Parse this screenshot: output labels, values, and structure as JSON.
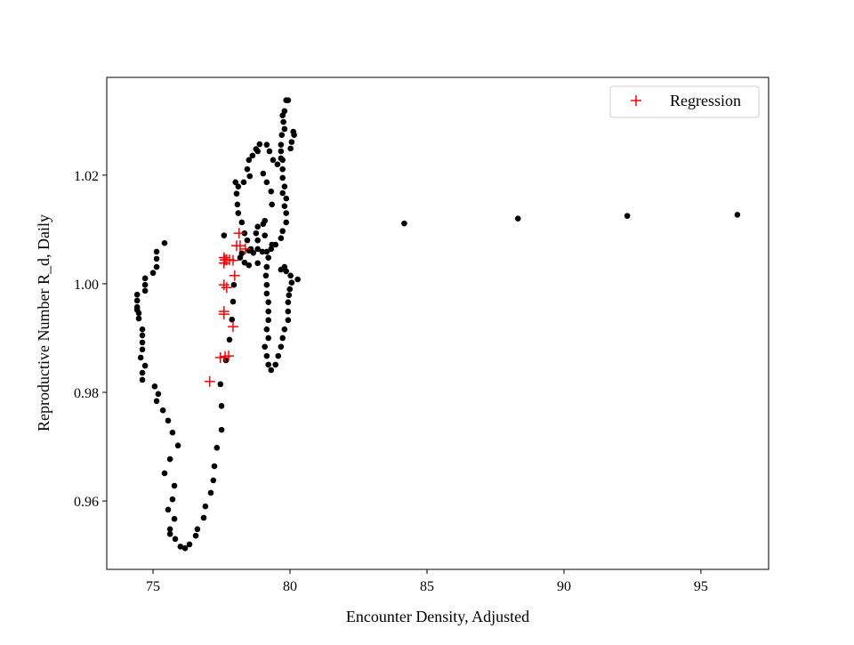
{
  "chart_data": {
    "type": "scatter",
    "title": "",
    "xlabel": "Encounter Density, Adjusted",
    "ylabel": "Reproductive Number R_d, Daily",
    "xlim": [
      73.31,
      97.47
    ],
    "ylim": [
      0.9474,
      1.038
    ],
    "xticks": [
      75,
      80,
      85,
      90,
      95
    ],
    "xtick_labels": [
      "75",
      "80",
      "85",
      "90",
      "95"
    ],
    "yticks": [
      0.96,
      0.98,
      1.0,
      1.02
    ],
    "ytick_labels": [
      "0.96",
      "0.98",
      "1.00",
      "1.02"
    ],
    "grid": false,
    "legend": {
      "placement": "top-right",
      "entries": [
        "Regression"
      ]
    },
    "series": [
      {
        "name": "",
        "marker": "circle",
        "color": "#000000",
        "points": [
          [
            75.42,
            1.0075
          ],
          [
            75.13,
            1.0059
          ],
          [
            75.13,
            1.0046
          ],
          [
            75.13,
            1.0031
          ],
          [
            75.0,
            1.002
          ],
          [
            74.71,
            1.001
          ],
          [
            74.71,
            0.9998
          ],
          [
            74.71,
            0.9987
          ],
          [
            74.42,
            0.998
          ],
          [
            74.42,
            0.9969
          ],
          [
            74.42,
            0.9957
          ],
          [
            74.42,
            0.9952
          ],
          [
            74.48,
            0.9946
          ],
          [
            74.48,
            0.9936
          ],
          [
            74.61,
            0.9916
          ],
          [
            74.61,
            0.9905
          ],
          [
            74.61,
            0.9892
          ],
          [
            74.61,
            0.9879
          ],
          [
            74.55,
            0.9864
          ],
          [
            74.71,
            0.9849
          ],
          [
            74.61,
            0.9836
          ],
          [
            74.61,
            0.9823
          ],
          [
            75.06,
            0.9811
          ],
          [
            75.19,
            0.9797
          ],
          [
            75.13,
            0.9784
          ],
          [
            75.36,
            0.9767
          ],
          [
            75.55,
            0.9748
          ],
          [
            75.71,
            0.9726
          ],
          [
            75.91,
            0.9702
          ],
          [
            75.62,
            0.9677
          ],
          [
            75.42,
            0.9651
          ],
          [
            75.78,
            0.9628
          ],
          [
            75.71,
            0.9603
          ],
          [
            75.55,
            0.9584
          ],
          [
            75.78,
            0.9567
          ],
          [
            75.62,
            0.9548
          ],
          [
            75.62,
            0.9539
          ],
          [
            75.81,
            0.953
          ],
          [
            76.0,
            0.9516
          ],
          [
            76.17,
            0.9513
          ],
          [
            76.33,
            0.952
          ],
          [
            76.56,
            0.9536
          ],
          [
            76.62,
            0.9548
          ],
          [
            76.85,
            0.9569
          ],
          [
            76.91,
            0.959
          ],
          [
            77.11,
            0.9615
          ],
          [
            77.2,
            0.9638
          ],
          [
            77.24,
            0.9664
          ],
          [
            77.33,
            0.9698
          ],
          [
            77.5,
            0.9731
          ],
          [
            77.5,
            0.9775
          ],
          [
            77.46,
            0.9815
          ],
          [
            77.66,
            0.9859
          ],
          [
            77.79,
            0.9897
          ],
          [
            77.88,
            0.9934
          ],
          [
            77.92,
            0.9967
          ],
          [
            77.95,
            0.9998
          ],
          [
            77.59,
            1.0089
          ],
          [
            79.86,
            1.0338
          ],
          [
            79.93,
            1.0338
          ],
          [
            79.8,
            1.0318
          ],
          [
            79.73,
            1.031
          ],
          [
            79.76,
            1.0298
          ],
          [
            79.8,
            1.0285
          ],
          [
            79.7,
            1.0274
          ],
          [
            80.12,
            1.028
          ],
          [
            80.15,
            1.0274
          ],
          [
            80.06,
            1.0261
          ],
          [
            80.02,
            1.0249
          ],
          [
            79.67,
            1.0256
          ],
          [
            79.67,
            1.0244
          ],
          [
            79.67,
            1.0231
          ],
          [
            79.54,
            1.022
          ],
          [
            79.73,
            1.0228
          ],
          [
            79.73,
            1.0211
          ],
          [
            79.73,
            1.0195
          ],
          [
            79.8,
            1.0179
          ],
          [
            79.73,
            1.0167
          ],
          [
            79.86,
            1.0157
          ],
          [
            79.8,
            1.0143
          ],
          [
            79.86,
            1.013
          ],
          [
            79.86,
            1.0113
          ],
          [
            79.73,
            1.0097
          ],
          [
            79.67,
            1.0084
          ],
          [
            79.47,
            1.0072
          ],
          [
            79.31,
            1.0064
          ],
          [
            79.15,
            1.0059
          ],
          [
            78.99,
            1.0059
          ],
          [
            78.82,
            1.0064
          ],
          [
            78.66,
            1.0057
          ],
          [
            78.5,
            1.0061
          ],
          [
            78.24,
            1.0056
          ],
          [
            78.18,
            1.0048
          ],
          [
            78.34,
            1.0039
          ],
          [
            78.5,
            1.0034
          ],
          [
            78.82,
            1.0038
          ],
          [
            79.15,
            1.0031
          ],
          [
            79.8,
            1.0031
          ],
          [
            79.67,
            1.0026
          ],
          [
            79.86,
            1.0023
          ],
          [
            80.02,
            1.0015
          ],
          [
            80.28,
            1.0008
          ],
          [
            80.06,
            1.0002
          ],
          [
            79.99,
            0.999
          ],
          [
            79.96,
            0.9979
          ],
          [
            79.93,
            0.9966
          ],
          [
            79.93,
            0.9949
          ],
          [
            79.93,
            0.9933
          ],
          [
            79.8,
            0.9916
          ],
          [
            79.73,
            0.99
          ],
          [
            79.67,
            0.9884
          ],
          [
            79.57,
            0.9867
          ],
          [
            79.47,
            0.9851
          ],
          [
            79.31,
            0.9841
          ],
          [
            79.21,
            0.9851
          ],
          [
            79.15,
            0.9867
          ],
          [
            79.08,
            0.9884
          ],
          [
            79.21,
            0.99
          ],
          [
            79.15,
            0.9916
          ],
          [
            79.21,
            0.9933
          ],
          [
            79.21,
            0.9949
          ],
          [
            79.21,
            0.9966
          ],
          [
            79.15,
            0.9982
          ],
          [
            79.15,
            0.9998
          ],
          [
            79.12,
            1.0015
          ],
          [
            79.15,
            1.0031
          ],
          [
            79.21,
            1.0048
          ],
          [
            78.89,
            1.0257
          ],
          [
            78.82,
            1.0244
          ],
          [
            78.76,
            1.0248
          ],
          [
            78.63,
            1.0236
          ],
          [
            78.5,
            1.0228
          ],
          [
            78.44,
            1.0211
          ],
          [
            78.53,
            1.0198
          ],
          [
            78.31,
            1.0187
          ],
          [
            78.01,
            1.0187
          ],
          [
            78.11,
            1.0179
          ],
          [
            78.05,
            1.0166
          ],
          [
            78.08,
            1.0146
          ],
          [
            78.11,
            1.013
          ],
          [
            78.24,
            1.0113
          ],
          [
            78.34,
            1.0093
          ],
          [
            78.44,
            1.008
          ],
          [
            78.57,
            1.0064
          ],
          [
            79.15,
            1.0256
          ],
          [
            79.25,
            1.0244
          ],
          [
            79.38,
            1.0228
          ],
          [
            79.02,
            1.0203
          ],
          [
            79.15,
            1.0187
          ],
          [
            79.31,
            1.017
          ],
          [
            79.34,
            1.0146
          ],
          [
            79.08,
            1.0116
          ],
          [
            79.02,
            1.011
          ],
          [
            78.82,
            1.0105
          ],
          [
            78.76,
            1.0093
          ],
          [
            78.82,
            1.008
          ],
          [
            79.08,
            1.0089
          ],
          [
            79.34,
            1.0072
          ],
          [
            84.17,
            1.0111
          ],
          [
            88.32,
            1.012
          ],
          [
            92.31,
            1.0125
          ],
          [
            96.33,
            1.0127
          ]
        ]
      },
      {
        "name": "Regression",
        "marker": "plus",
        "color": "#ff0000",
        "points": [
          [
            77.07,
            0.982
          ],
          [
            77.63,
            0.9866
          ],
          [
            77.46,
            0.9864
          ],
          [
            77.76,
            0.9867
          ],
          [
            77.59,
            0.9949
          ],
          [
            77.59,
            0.9944
          ],
          [
            77.92,
            0.9921
          ],
          [
            77.59,
            0.9998
          ],
          [
            77.69,
            0.9993
          ],
          [
            77.98,
            1.0015
          ],
          [
            77.59,
            1.0038
          ],
          [
            77.59,
            1.0048
          ],
          [
            77.63,
            1.0044
          ],
          [
            77.92,
            1.0043
          ],
          [
            78.05,
            1.007
          ],
          [
            78.14,
            1.0093
          ],
          [
            78.18,
            1.007
          ],
          [
            77.79,
            1.0044
          ],
          [
            77.69,
            1.0044
          ],
          [
            78.37,
            1.0064
          ]
        ]
      }
    ]
  }
}
